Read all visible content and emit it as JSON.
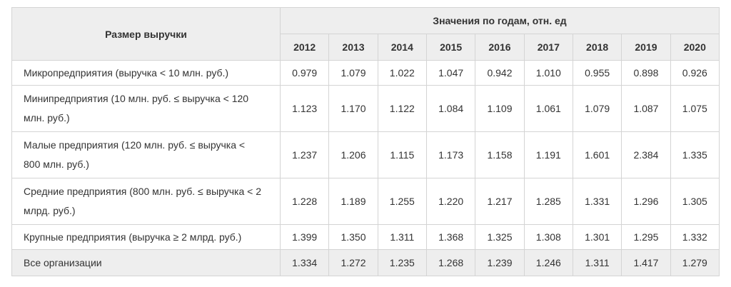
{
  "table": {
    "header": {
      "row_label": "Размер выручки",
      "group_label": "Значения по годам, отн. ед"
    },
    "years": [
      "2012",
      "2013",
      "2014",
      "2015",
      "2016",
      "2017",
      "2018",
      "2019",
      "2020"
    ],
    "rows": [
      {
        "label": "Микропредприятия (выручка < 10 млн. руб.)",
        "values": [
          "0.979",
          "1.079",
          "1.022",
          "1.047",
          "0.942",
          "1.010",
          "0.955",
          "0.898",
          "0.926"
        ]
      },
      {
        "label": "Минипредприятия (10 млн. руб. ≤ выручка < 120 млн. руб.)",
        "values": [
          "1.123",
          "1.170",
          "1.122",
          "1.084",
          "1.109",
          "1.061",
          "1.079",
          "1.087",
          "1.075"
        ]
      },
      {
        "label": "Малые предприятия (120 млн. руб. ≤ выручка < 800 млн. руб.)",
        "values": [
          "1.237",
          "1.206",
          "1.115",
          "1.173",
          "1.158",
          "1.191",
          "1.601",
          "2.384",
          "1.335"
        ]
      },
      {
        "label": "Средние предприятия (800 млн. руб. ≤ выручка < 2 млрд. руб.)",
        "values": [
          "1.228",
          "1.189",
          "1.255",
          "1.220",
          "1.217",
          "1.285",
          "1.331",
          "1.296",
          "1.305"
        ]
      },
      {
        "label": "Крупные предприятия (выручка ≥ 2 млрд. руб.)",
        "values": [
          "1.399",
          "1.350",
          "1.311",
          "1.368",
          "1.325",
          "1.308",
          "1.301",
          "1.295",
          "1.332"
        ]
      },
      {
        "label": "Все организации",
        "values": [
          "1.334",
          "1.272",
          "1.235",
          "1.268",
          "1.239",
          "1.246",
          "1.311",
          "1.417",
          "1.279"
        ]
      }
    ]
  }
}
